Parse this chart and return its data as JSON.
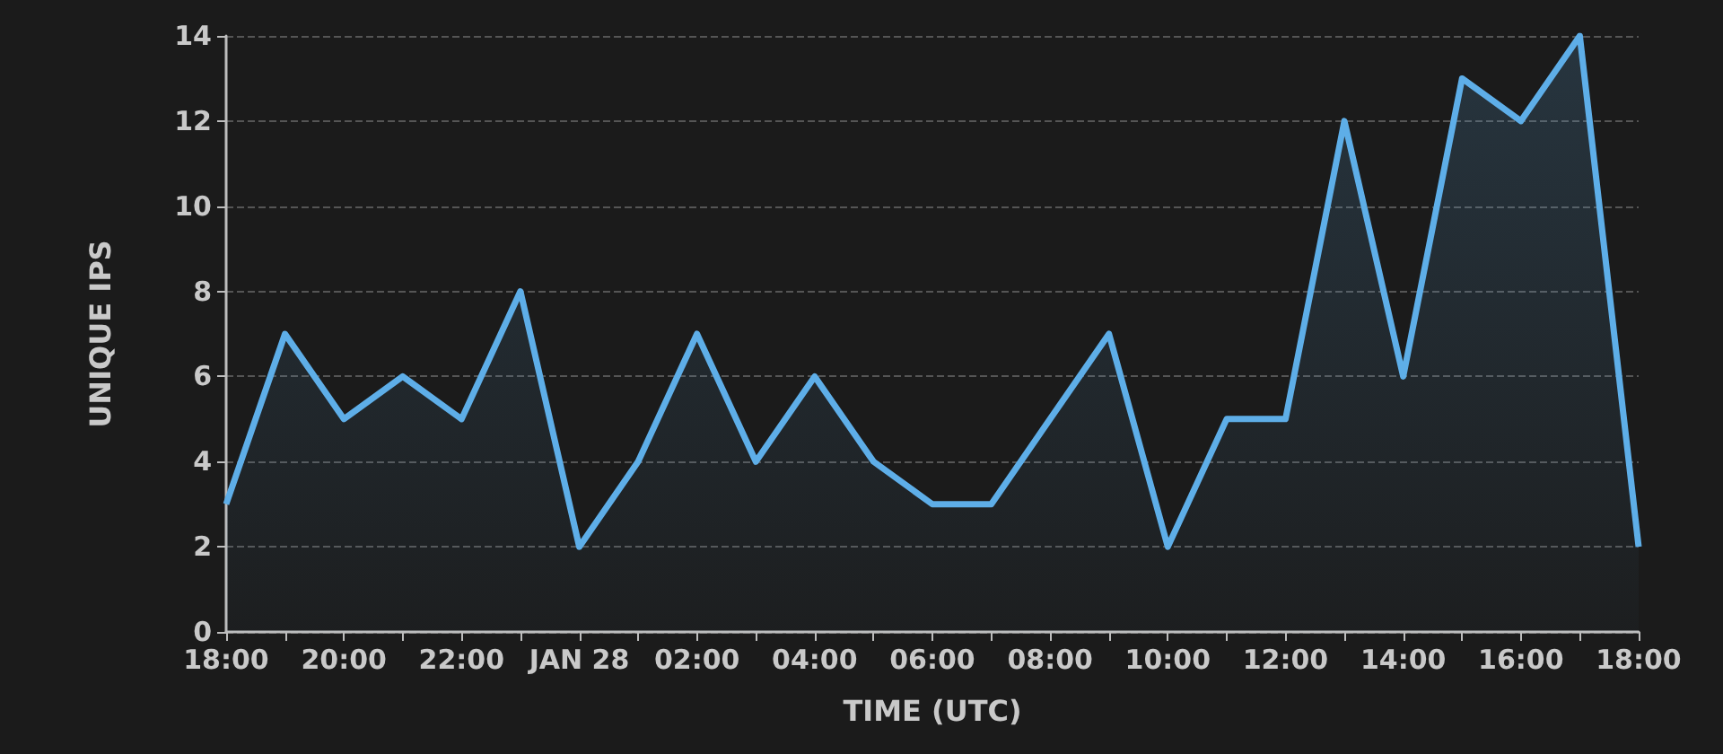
{
  "chart_data": {
    "type": "area",
    "xlabel": "TIME (UTC)",
    "ylabel": "UNIQUE IPS",
    "categories": [
      "18:00",
      null,
      "20:00",
      null,
      "22:00",
      null,
      "JAN 28",
      null,
      "02:00",
      null,
      "04:00",
      null,
      "06:00",
      null,
      "08:00",
      null,
      "10:00",
      null,
      "12:00",
      null,
      "14:00",
      null,
      "16:00",
      null,
      "18:00"
    ],
    "series": [
      {
        "color": "#5eaee8",
        "values": [
          3,
          7,
          5,
          6,
          5,
          8,
          2,
          4,
          7,
          4,
          6,
          4,
          3,
          3,
          5,
          7,
          2,
          5,
          5,
          12,
          6,
          13,
          12,
          14,
          2
        ]
      }
    ],
    "ylim": [
      0,
      14
    ],
    "yticks": [
      0,
      2,
      4,
      6,
      8,
      10,
      12,
      14
    ],
    "grid": "y",
    "marker": "none",
    "line_style": "solid"
  }
}
